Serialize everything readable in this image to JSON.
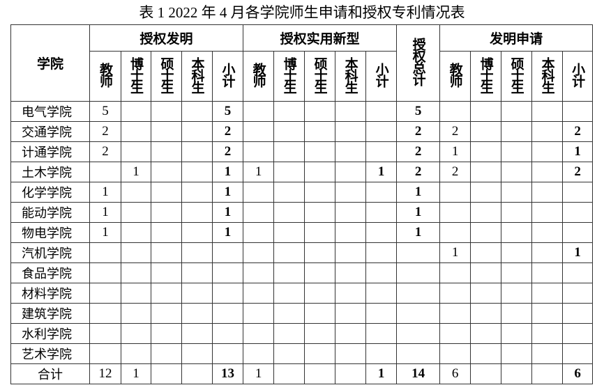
{
  "title": "表 1 2022 年 4 月各学院师生申请和授权专利情况表",
  "headers": {
    "college": "学院",
    "groups": [
      "授权发明",
      "授权实用新型",
      "授权总计",
      "发明申请"
    ],
    "subcols": [
      "教师",
      "博士生",
      "硕士生",
      "本科生",
      "小计"
    ]
  },
  "rows": [
    {
      "name": "电气学院",
      "cells": [
        "5",
        "",
        "",
        "",
        "5",
        "",
        "",
        "",
        "",
        "",
        "5",
        "",
        "",
        "",
        "",
        ""
      ]
    },
    {
      "name": "交通学院",
      "cells": [
        "2",
        "",
        "",
        "",
        "2",
        "",
        "",
        "",
        "",
        "",
        "2",
        "2",
        "",
        "",
        "",
        "2"
      ]
    },
    {
      "name": "计通学院",
      "cells": [
        "2",
        "",
        "",
        "",
        "2",
        "",
        "",
        "",
        "",
        "",
        "2",
        "1",
        "",
        "",
        "",
        "1"
      ]
    },
    {
      "name": "土木学院",
      "cells": [
        "",
        "1",
        "",
        "",
        "1",
        "1",
        "",
        "",
        "",
        "1",
        "2",
        "2",
        "",
        "",
        "",
        "2"
      ]
    },
    {
      "name": "化学学院",
      "cells": [
        "1",
        "",
        "",
        "",
        "1",
        "",
        "",
        "",
        "",
        "",
        "1",
        "",
        "",
        "",
        "",
        ""
      ]
    },
    {
      "name": "能动学院",
      "cells": [
        "1",
        "",
        "",
        "",
        "1",
        "",
        "",
        "",
        "",
        "",
        "1",
        "",
        "",
        "",
        "",
        ""
      ]
    },
    {
      "name": "物电学院",
      "cells": [
        "1",
        "",
        "",
        "",
        "1",
        "",
        "",
        "",
        "",
        "",
        "1",
        "",
        "",
        "",
        "",
        ""
      ]
    },
    {
      "name": "汽机学院",
      "cells": [
        "",
        "",
        "",
        "",
        "",
        "",
        "",
        "",
        "",
        "",
        "",
        "1",
        "",
        "",
        "",
        "1"
      ]
    },
    {
      "name": "食品学院",
      "cells": [
        "",
        "",
        "",
        "",
        "",
        "",
        "",
        "",
        "",
        "",
        "",
        "",
        "",
        "",
        "",
        ""
      ]
    },
    {
      "name": "材料学院",
      "cells": [
        "",
        "",
        "",
        "",
        "",
        "",
        "",
        "",
        "",
        "",
        "",
        "",
        "",
        "",
        "",
        ""
      ]
    },
    {
      "name": "建筑学院",
      "cells": [
        "",
        "",
        "",
        "",
        "",
        "",
        "",
        "",
        "",
        "",
        "",
        "",
        "",
        "",
        "",
        ""
      ]
    },
    {
      "name": "水利学院",
      "cells": [
        "",
        "",
        "",
        "",
        "",
        "",
        "",
        "",
        "",
        "",
        "",
        "",
        "",
        "",
        "",
        ""
      ]
    },
    {
      "name": "艺术学院",
      "cells": [
        "",
        "",
        "",
        "",
        "",
        "",
        "",
        "",
        "",
        "",
        "",
        "",
        "",
        "",
        "",
        ""
      ]
    }
  ],
  "total": {
    "name": "合计",
    "cells": [
      "12",
      "1",
      "",
      "",
      "13",
      "1",
      "",
      "",
      "",
      "1",
      "14",
      "6",
      "",
      "",
      "",
      "6"
    ]
  }
}
